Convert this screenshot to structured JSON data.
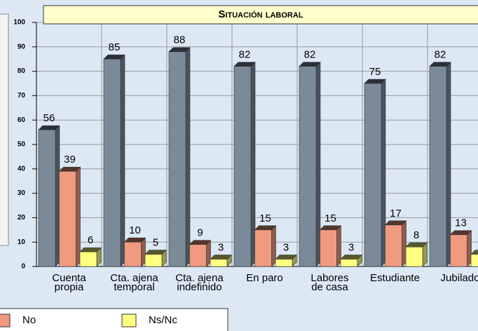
{
  "chart_data": {
    "type": "bar3d",
    "title": "Situación laboral",
    "categories": [
      [
        "Cuenta",
        "propia"
      ],
      [
        "Cta. ajena",
        "temporal"
      ],
      [
        "Cta. ajena",
        "indefinido"
      ],
      [
        "En paro"
      ],
      [
        "Labores",
        "de casa"
      ],
      [
        "Estudiante"
      ],
      [
        "Jubilado"
      ]
    ],
    "series": [
      {
        "color": "#7a8a99",
        "values": [
          56,
          85,
          88,
          82,
          82,
          75,
          82
        ]
      },
      {
        "name": "No",
        "color": "#f09a80",
        "values": [
          39,
          10,
          9,
          15,
          15,
          17,
          13
        ]
      },
      {
        "name": "Ns/Nc",
        "color": "#ffff80",
        "values": [
          6,
          5,
          3,
          3,
          3,
          8,
          5
        ]
      }
    ],
    "ylim": [
      0,
      100
    ],
    "yticks": [
      0,
      10,
      20,
      30,
      40,
      50,
      60,
      70,
      80,
      90,
      100
    ],
    "grid": true
  }
}
